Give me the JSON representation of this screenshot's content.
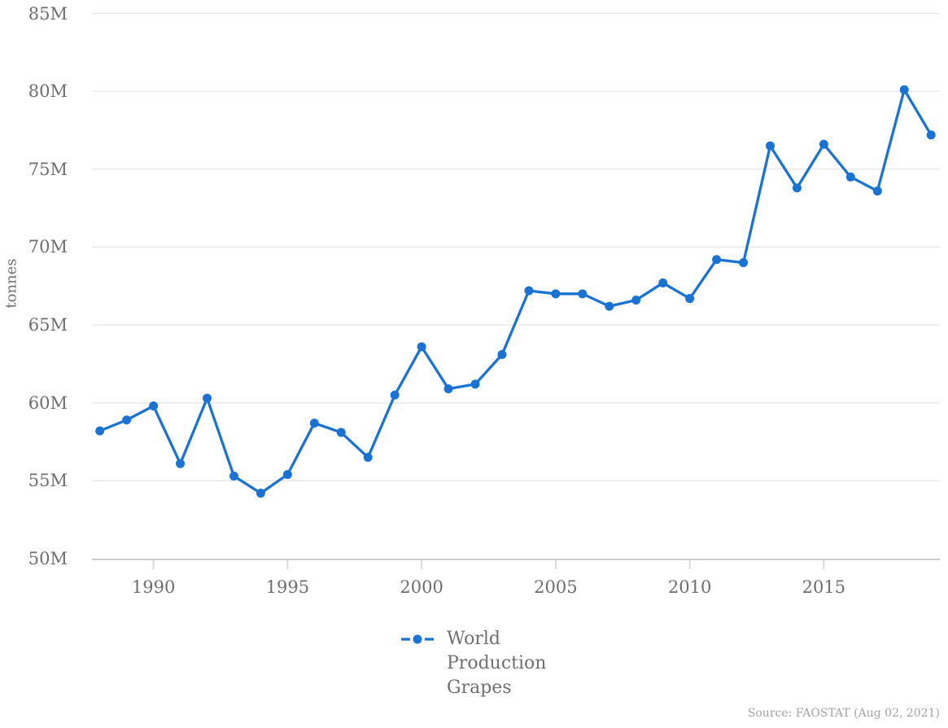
{
  "chart_data": {
    "type": "line",
    "title": "",
    "ylabel": "tonnes",
    "unit": "million tonnes",
    "x": [
      1988,
      1989,
      1990,
      1991,
      1992,
      1993,
      1994,
      1995,
      1996,
      1997,
      1998,
      1999,
      2000,
      2001,
      2002,
      2003,
      2004,
      2005,
      2006,
      2007,
      2008,
      2009,
      2010,
      2011,
      2012,
      2013,
      2014,
      2015,
      2016,
      2017,
      2018,
      2019
    ],
    "series": [
      {
        "name": "World Production Grapes",
        "values": [
          58.2,
          58.9,
          59.8,
          56.1,
          60.3,
          55.3,
          54.2,
          55.4,
          58.7,
          58.1,
          56.5,
          60.5,
          63.6,
          60.9,
          61.2,
          63.1,
          67.2,
          67.0,
          67.0,
          66.2,
          66.6,
          67.7,
          66.7,
          69.2,
          69.0,
          76.5,
          73.8,
          76.6,
          74.5,
          73.6,
          80.1,
          77.2
        ]
      }
    ],
    "ylim": [
      50,
      85
    ],
    "yticks": [
      {
        "value": 85,
        "label": "85M"
      },
      {
        "value": 80,
        "label": "80M"
      },
      {
        "value": 75,
        "label": "75M"
      },
      {
        "value": 70,
        "label": "70M"
      },
      {
        "value": 65,
        "label": "65M"
      },
      {
        "value": 60,
        "label": "60M"
      },
      {
        "value": 55,
        "label": "55M"
      },
      {
        "value": 50,
        "label": "50M"
      }
    ],
    "xticks": [
      {
        "value": 1990,
        "label": "1990"
      },
      {
        "value": 1995,
        "label": "1995"
      },
      {
        "value": 2000,
        "label": "2000"
      },
      {
        "value": 2005,
        "label": "2005"
      },
      {
        "value": 2010,
        "label": "2010"
      },
      {
        "value": 2015,
        "label": "2015"
      }
    ],
    "grid": "horizontal",
    "legend_position": "bottom-center",
    "marker": "circle"
  },
  "source": {
    "text": "Source: FAOSTAT (Aug 02, 2021)"
  },
  "colors": {
    "line": "#1a73d2",
    "grid": "#e6e6e6",
    "axis": "#cbcbcb",
    "tick": "#d9d9d9",
    "label_text": "#6e6e6e",
    "legend_text": "#6f6f6f",
    "source_text": "#a3a3a3"
  }
}
